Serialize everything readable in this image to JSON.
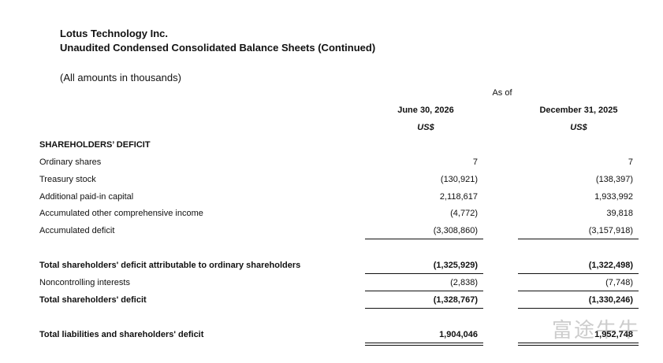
{
  "header": {
    "company": "Lotus Technology Inc.",
    "title": "Unaudited Condensed Consolidated Balance Sheets (Continued)",
    "note": "(All amounts in thousands)"
  },
  "columns": {
    "as_of": "As of",
    "periods": [
      {
        "date": "June 30, 2026",
        "currency": "US$"
      },
      {
        "date": "December 31, 2025",
        "currency": "US$"
      }
    ]
  },
  "table": {
    "section": "SHAREHOLDERS’ DEFICIT",
    "rows": [
      [
        "Ordinary shares",
        "7",
        "7"
      ],
      [
        "Treasury stock",
        "(130,921)",
        "(138,397)"
      ],
      [
        "Additional paid-in capital",
        "2,118,617",
        "1,933,992"
      ],
      [
        "Accumulated other comprehensive income",
        "(4,772)",
        "39,818"
      ],
      [
        "Accumulated deficit",
        "(3,308,860)",
        "(3,157,918)"
      ],
      [
        "Total shareholders' deficit attributable to ordinary shareholders",
        "(1,325,929)",
        "(1,322,498)"
      ],
      [
        "Noncontrolling interests",
        "(2,838)",
        "(7,748)"
      ],
      [
        "Total shareholders' deficit",
        "(1,328,767)",
        "(1,330,246)"
      ],
      [
        "Total liabilities and shareholders' deficit",
        "1,904,046",
        "1,952,748"
      ]
    ]
  },
  "watermark": "富途牛牛"
}
